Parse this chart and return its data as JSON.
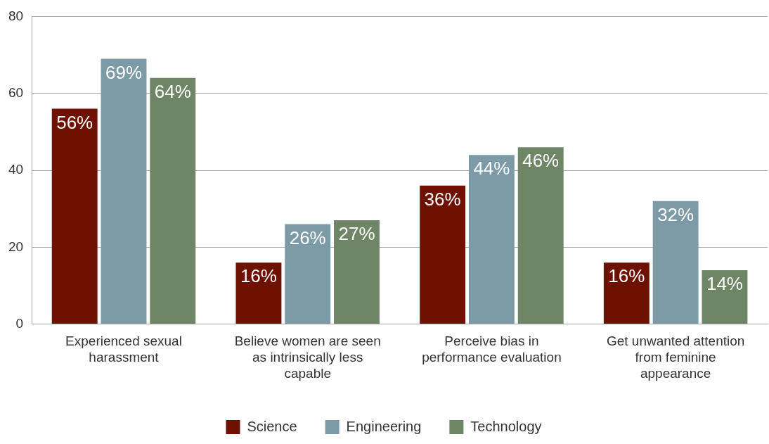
{
  "chart_data": {
    "type": "bar",
    "categories": [
      "Experienced sexual harassment",
      "Believe women are seen as intrinsically less capable",
      "Perceive bias in performance evaluation",
      "Get unwanted attention from feminine appearance"
    ],
    "series": [
      {
        "name": "Science",
        "color": "#6f1100",
        "values": [
          56,
          16,
          36,
          16
        ],
        "value_labels": [
          "56%",
          "16%",
          "36%",
          "16%"
        ]
      },
      {
        "name": "Engineering",
        "color": "#7c9ba6",
        "values": [
          69,
          26,
          44,
          32
        ],
        "value_labels": [
          "69%",
          "26%",
          "44%",
          "32%"
        ]
      },
      {
        "name": "Technology",
        "color": "#6e8566",
        "values": [
          64,
          27,
          46,
          14
        ],
        "value_labels": [
          "64%",
          "27%",
          "46%",
          "14%"
        ]
      }
    ],
    "ylim": [
      0,
      80
    ],
    "yticks": [
      0,
      20,
      40,
      60,
      80
    ],
    "grid": "y",
    "legend": "bottom"
  }
}
